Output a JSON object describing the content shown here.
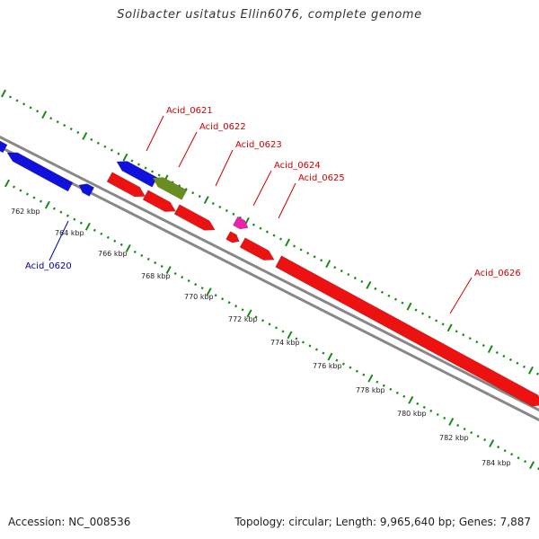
{
  "title": "Solibacter usitatus Ellin6076, complete genome",
  "footer": {
    "accession": "Accession: NC_008536",
    "summary": "Topology: circular; Length: 9,965,640 bp; Genes: 7,887"
  },
  "colors": {
    "backbone": "#888888",
    "dots": "#1a8a1a",
    "forward": "#ee1111",
    "reverse": "#1111dd",
    "olive": "#6b8e23",
    "pink": "#ee22aa",
    "forward_label": "#cc0000",
    "reverse_label": "#0000aa"
  },
  "scale_labels": [
    "762 kbp",
    "764 kbp",
    "766 kbp",
    "768 kbp",
    "770 kbp",
    "772 kbp",
    "774 kbp",
    "776 kbp",
    "778 kbp",
    "780 kbp",
    "782 kbp",
    "784 kbp"
  ],
  "genes": [
    {
      "name": "",
      "color": "#1111dd",
      "strand": "reverse"
    },
    {
      "name": "",
      "color": "#1111dd",
      "strand": "reverse"
    },
    {
      "name": "",
      "color": "#1111dd",
      "strand": "reverse"
    },
    {
      "name": "",
      "color": "#1111dd",
      "strand": "reverse"
    },
    {
      "name": "",
      "color": "#6b8e23",
      "strand": "reverse"
    },
    {
      "name": "",
      "color": "#ee1111",
      "strand": "forward"
    },
    {
      "name": "",
      "color": "#ee1111",
      "strand": "forward"
    },
    {
      "name": "",
      "color": "#ee1111",
      "strand": "forward"
    },
    {
      "name": "",
      "color": "#ee22aa",
      "strand": "forward"
    },
    {
      "name": "",
      "color": "#ee1111",
      "strand": "forward"
    },
    {
      "name": "",
      "color": "#ee1111",
      "strand": "forward"
    },
    {
      "name": "",
      "color": "#ee1111",
      "strand": "forward"
    }
  ],
  "gene_labels": [
    {
      "text": "Acid_0620",
      "strand": "reverse"
    },
    {
      "text": "Acid_0621",
      "strand": "forward"
    },
    {
      "text": "Acid_0622",
      "strand": "forward"
    },
    {
      "text": "Acid_0623",
      "strand": "forward"
    },
    {
      "text": "Acid_0624",
      "strand": "forward"
    },
    {
      "text": "Acid_0625",
      "strand": "forward"
    },
    {
      "text": "Acid_0626",
      "strand": "forward"
    }
  ]
}
